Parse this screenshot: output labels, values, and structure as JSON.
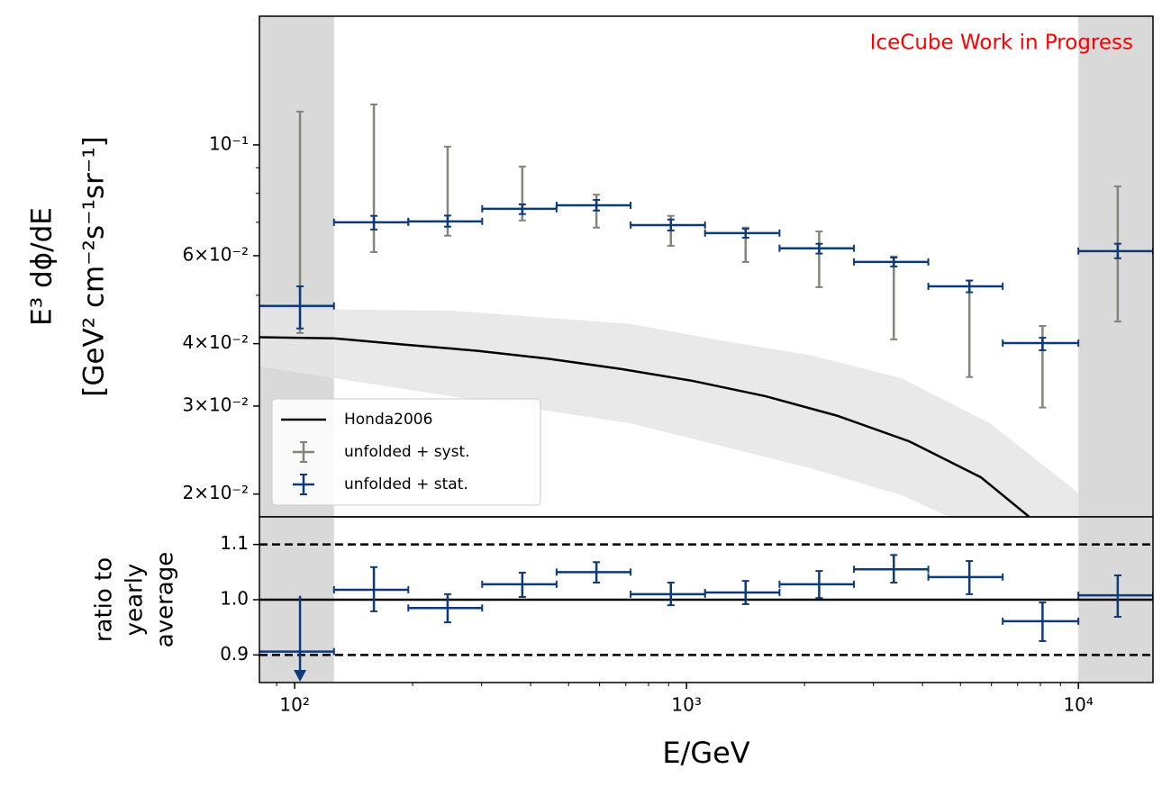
{
  "chart_data": [
    {
      "type": "errorbar",
      "annotation": "IceCube Work in Progress",
      "annotation_color": "#ff0000",
      "ylabel_lines": [
        "E³ dϕ/dE",
        "[GeV² cm⁻²s⁻¹sr⁻¹]"
      ],
      "xscale": "log",
      "yscale": "log",
      "xlim": [
        81.3,
        15500
      ],
      "ylim": [
        0.018,
        0.181
      ],
      "yticks": [
        {
          "value": 0.02,
          "label": "2×10⁻²"
        },
        {
          "value": 0.03,
          "label": "3×10⁻²"
        },
        {
          "value": 0.04,
          "label": "4×10⁻²"
        },
        {
          "value": 0.06,
          "label": "6×10⁻²"
        },
        {
          "value": 0.1,
          "label": "10⁻¹"
        }
      ],
      "yticks_minor": [
        0.05,
        0.07,
        0.08,
        0.09
      ],
      "shaded_regions": [
        [
          81.3,
          126
        ],
        [
          10000,
          15500
        ]
      ],
      "shade_color": "#d9d9d9",
      "legend": "lower left",
      "bins": [
        81,
        126,
        195,
        301,
        466,
        720,
        1115,
        1727,
        2675,
        4140,
        6410,
        10000,
        15500
      ],
      "x": [
        103.2,
        159.3,
        245.7,
        381,
        589,
        912,
        1415,
        2180,
        3380,
        5270,
        8100,
        12600
      ],
      "series": [
        {
          "name": "unfolded + syst.",
          "color": "#85847a",
          "xerr": false,
          "values": [
            0.0476,
            0.07,
            0.0703,
            0.0745,
            0.0757,
            0.0691,
            0.0666,
            0.0621,
            0.0583,
            0.0521,
            0.0401,
            0.0613
          ],
          "high": [
            0.1166,
            0.1205,
            0.0992,
            0.0905,
            0.0795,
            0.0721,
            0.0683,
            0.0671,
            0.0598,
            0.0535,
            0.0434,
            0.0826
          ],
          "low": [
            0.042,
            0.061,
            0.0658,
            0.0706,
            0.0683,
            0.0628,
            0.0583,
            0.0519,
            0.0408,
            0.0343,
            0.0298,
            0.0443
          ]
        },
        {
          "name": "unfolded + stat.",
          "color": "#0d3a78",
          "xerr": true,
          "values": [
            0.0476,
            0.07,
            0.0703,
            0.0745,
            0.0757,
            0.0691,
            0.0666,
            0.0621,
            0.0583,
            0.0521,
            0.0401,
            0.0613
          ],
          "high": [
            0.0521,
            0.0721,
            0.0722,
            0.076,
            0.0776,
            0.0709,
            0.0679,
            0.0634,
            0.0595,
            0.0535,
            0.0411,
            0.0634
          ],
          "low": [
            0.0429,
            0.0677,
            0.0686,
            0.0727,
            0.0739,
            0.0674,
            0.0652,
            0.0606,
            0.0571,
            0.0507,
            0.0388,
            0.0593
          ]
        }
      ],
      "model": {
        "name": "Honda2006",
        "color": "#000000",
        "x": [
          81.3,
          125.6,
          192.5,
          292.9,
          446,
          680,
          1035,
          1588,
          2420,
          3700,
          5640,
          7490
        ],
        "values": [
          0.0412,
          0.041,
          0.0398,
          0.0387,
          0.0373,
          0.0356,
          0.0337,
          0.0314,
          0.0287,
          0.0255,
          0.0216,
          0.018
        ]
      },
      "band": {
        "color": "#e5e5e5",
        "x": [
          81.3,
          250,
          720,
          1220,
          2080,
          3540,
          5950,
          10000
        ],
        "upper": [
          0.047,
          0.0466,
          0.0438,
          0.0406,
          0.0379,
          0.0341,
          0.0277,
          0.0201
        ],
        "lower": [
          0.036,
          0.0314,
          0.0277,
          0.025,
          0.0225,
          0.0199,
          0.0165,
          0.015
        ]
      }
    },
    {
      "type": "errorbar",
      "xlabel": "E/GeV",
      "ylabel_lines": [
        "ratio to",
        "yearly",
        "average"
      ],
      "xscale": "log",
      "yscale": "linear",
      "xlim": [
        81.3,
        15500
      ],
      "ylim": [
        0.85,
        1.15
      ],
      "xticks": [
        {
          "value": 100,
          "label": "10²"
        },
        {
          "value": 1000,
          "label": "10³"
        },
        {
          "value": 10000,
          "label": "10⁴"
        }
      ],
      "xticks_minor": [
        90,
        200,
        300,
        400,
        500,
        600,
        700,
        800,
        900,
        2000,
        3000,
        4000,
        5000,
        6000,
        7000,
        8000,
        9000
      ],
      "yticks": [
        0.9,
        {
          "value": 1,
          "label": "1.0"
        },
        1.1
      ],
      "reference_lines": [
        {
          "value": 1,
          "style": "solid"
        },
        {
          "value": 0.9,
          "style": "dashed"
        },
        {
          "value": 1.1,
          "style": "dashed"
        }
      ],
      "shaded_regions": [
        [
          81.3,
          126
        ],
        [
          10000,
          15500
        ]
      ],
      "shade_color": "#d9d9d9",
      "bins": [
        81,
        126,
        195,
        301,
        466,
        720,
        1115,
        1727,
        2675,
        4140,
        6410,
        10000,
        15500
      ],
      "x": [
        103.2,
        159.3,
        245.7,
        381,
        589,
        912,
        1415,
        2180,
        3380,
        5270,
        8100,
        12600
      ],
      "series": [
        {
          "name": "unfolded + stat.",
          "color": "#0d3a78",
          "xerr": true,
          "values": [
            0.906,
            1.018,
            0.985,
            1.028,
            1.05,
            1.01,
            1.013,
            1.028,
            1.055,
            1.041,
            0.961,
            1.008
          ],
          "high": [
            1.007,
            1.059,
            1.01,
            1.049,
            1.068,
            1.031,
            1.034,
            1.052,
            1.081,
            1.07,
            0.995,
            1.044
          ],
          "low": [
            null,
            0.979,
            0.959,
            1.005,
            1.031,
            0.99,
            0.992,
            1.003,
            1.031,
            1.01,
            0.925,
            0.969
          ]
        }
      ]
    }
  ]
}
